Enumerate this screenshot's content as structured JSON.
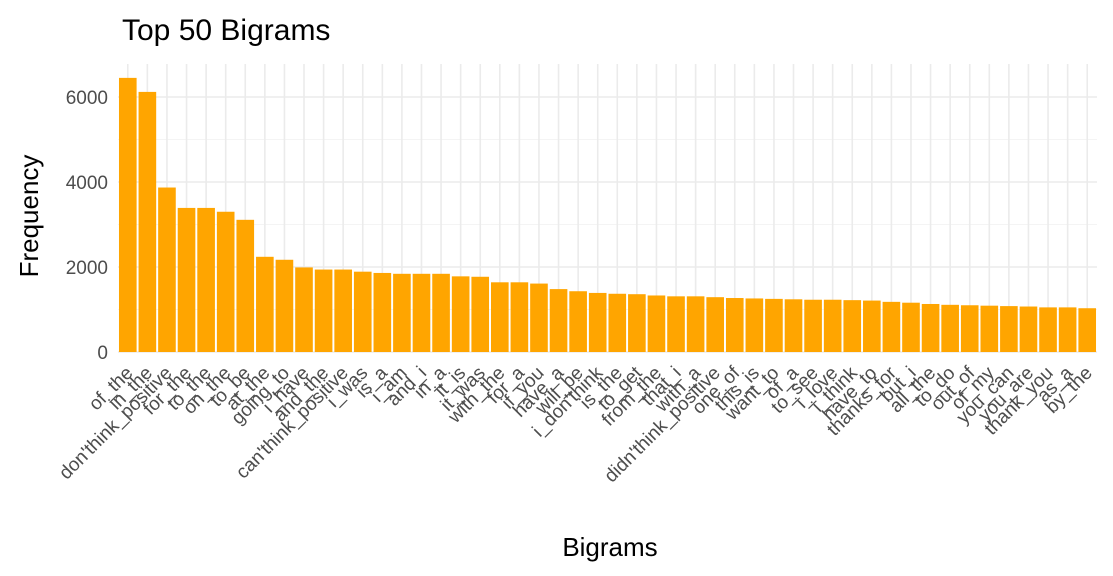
{
  "chart_data": {
    "type": "bar",
    "title": "Top 50 Bigrams",
    "xlabel": "Bigrams",
    "ylabel": "Frequency",
    "ylim": [
      0,
      6800
    ],
    "yticks": [
      0,
      2000,
      4000,
      6000
    ],
    "bar_color": "#FFA500",
    "grid": true,
    "categories": [
      "of_the",
      "in_the",
      "don'think_positive",
      "for_the",
      "to_the",
      "on_the",
      "to_be",
      "at_the",
      "going_to",
      "i_have",
      "and_the",
      "can'think_positive",
      "i_was",
      "is_a",
      "i_am",
      "and_i",
      "in_a",
      "it_is",
      "it_was",
      "with_the",
      "for_a",
      "if_you",
      "have_a",
      "will_be",
      "i_don'think",
      "is_the",
      "to_get",
      "from_the",
      "that_i",
      "with_a",
      "didn'think_positive",
      "one_of",
      "this_is",
      "want_to",
      "of_a",
      "to_see",
      "i_love",
      "i_think",
      "have_to",
      "thanks_for",
      "but_i",
      "all_the",
      "to_do",
      "out_of",
      "of_my",
      "you_can",
      "you_are",
      "thank_you",
      "as_a",
      "by_the"
    ],
    "values": [
      6450,
      6120,
      3870,
      3390,
      3390,
      3300,
      3110,
      2240,
      2170,
      1990,
      1940,
      1940,
      1890,
      1860,
      1840,
      1840,
      1840,
      1780,
      1770,
      1640,
      1640,
      1610,
      1480,
      1430,
      1390,
      1370,
      1360,
      1330,
      1310,
      1310,
      1290,
      1270,
      1260,
      1250,
      1240,
      1230,
      1230,
      1220,
      1210,
      1180,
      1160,
      1130,
      1110,
      1100,
      1090,
      1080,
      1070,
      1050,
      1050,
      1030
    ]
  }
}
